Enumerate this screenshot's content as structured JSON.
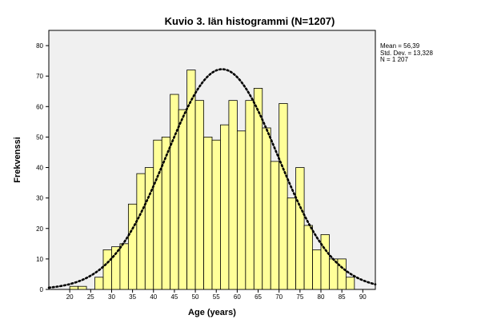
{
  "chart_data": {
    "type": "bar",
    "title": "Kuvio 3. Iän histogrammi (N=1207)",
    "xlabel": "Age (years)",
    "ylabel": "Frekvenssi",
    "xlim": [
      15,
      93
    ],
    "ylim": [
      0,
      85
    ],
    "x_ticks": [
      20,
      25,
      30,
      35,
      40,
      45,
      50,
      55,
      60,
      65,
      70,
      75,
      80,
      85,
      90
    ],
    "y_ticks": [
      0,
      10,
      20,
      30,
      40,
      50,
      60,
      70,
      80
    ],
    "bin_width": 2,
    "bins": [
      {
        "x": 21,
        "value": 1
      },
      {
        "x": 23,
        "value": 1
      },
      {
        "x": 27,
        "value": 4
      },
      {
        "x": 29,
        "value": 13
      },
      {
        "x": 31,
        "value": 14
      },
      {
        "x": 33,
        "value": 15
      },
      {
        "x": 35,
        "value": 28
      },
      {
        "x": 37,
        "value": 38
      },
      {
        "x": 39,
        "value": 40
      },
      {
        "x": 41,
        "value": 49
      },
      {
        "x": 43,
        "value": 50
      },
      {
        "x": 45,
        "value": 64
      },
      {
        "x": 47,
        "value": 59
      },
      {
        "x": 49,
        "value": 72
      },
      {
        "x": 51,
        "value": 62
      },
      {
        "x": 53,
        "value": 50
      },
      {
        "x": 55,
        "value": 49
      },
      {
        "x": 57,
        "value": 54
      },
      {
        "x": 59,
        "value": 62
      },
      {
        "x": 61,
        "value": 52
      },
      {
        "x": 63,
        "value": 62
      },
      {
        "x": 65,
        "value": 66
      },
      {
        "x": 67,
        "value": 53
      },
      {
        "x": 69,
        "value": 42
      },
      {
        "x": 71,
        "value": 61
      },
      {
        "x": 73,
        "value": 30
      },
      {
        "x": 75,
        "value": 40
      },
      {
        "x": 77,
        "value": 21
      },
      {
        "x": 79,
        "value": 13
      },
      {
        "x": 81,
        "value": 18
      },
      {
        "x": 83,
        "value": 10
      },
      {
        "x": 85,
        "value": 10
      },
      {
        "x": 87,
        "value": 4
      }
    ],
    "normal_curve": {
      "mean": 56.39,
      "std": 13.328,
      "n": 1207
    },
    "stats_lines": [
      "Mean = 56,39",
      "Std. Dev. = 13,328",
      "N = 1 207"
    ],
    "colors": {
      "bar_fill": "#ffff99",
      "bar_stroke": "#000000",
      "plot_bg": "#f0f0f0",
      "curve": "#000000"
    },
    "grid": false,
    "legend": "none"
  }
}
